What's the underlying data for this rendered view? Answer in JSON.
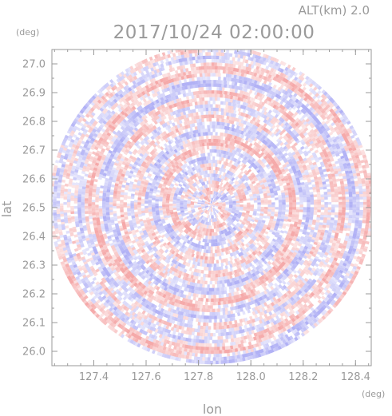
{
  "header": {
    "altitude_label": "ALT(km) 2.0",
    "timestamp": "2017/10/24 02:00:00"
  },
  "chart_data": {
    "type": "heatmap",
    "title": "2017/10/24 02:00:00",
    "subtitle": "ALT(km) 2.0",
    "xlabel": "lon",
    "ylabel": "lat",
    "x_unit": "(deg)",
    "y_unit": "(deg)",
    "xlim": [
      127.24,
      128.46
    ],
    "ylim": [
      25.95,
      27.05
    ],
    "x_ticks": [
      127.4,
      127.6,
      127.8,
      128.0,
      128.2,
      128.4
    ],
    "x_tick_labels": [
      "127.4",
      "127.6",
      "127.8",
      "128.0",
      "128.2",
      "128.4"
    ],
    "y_ticks": [
      26.0,
      26.1,
      26.2,
      26.3,
      26.4,
      26.5,
      26.6,
      26.7,
      26.8,
      26.9,
      27.0
    ],
    "y_tick_labels": [
      "26.0",
      "26.1",
      "26.2",
      "26.3",
      "26.4",
      "26.5",
      "26.6",
      "26.7",
      "26.8",
      "26.9",
      "27.0"
    ],
    "radar_center": {
      "lon": 127.85,
      "lat": 26.51
    },
    "radar_range_deg": {
      "lon": 0.62,
      "lat": 0.555
    },
    "colormap": {
      "positive": "#f4a0a0",
      "negative": "#a8a8f4",
      "zero": "#ffffff"
    },
    "grid": false,
    "legend": "none"
  }
}
